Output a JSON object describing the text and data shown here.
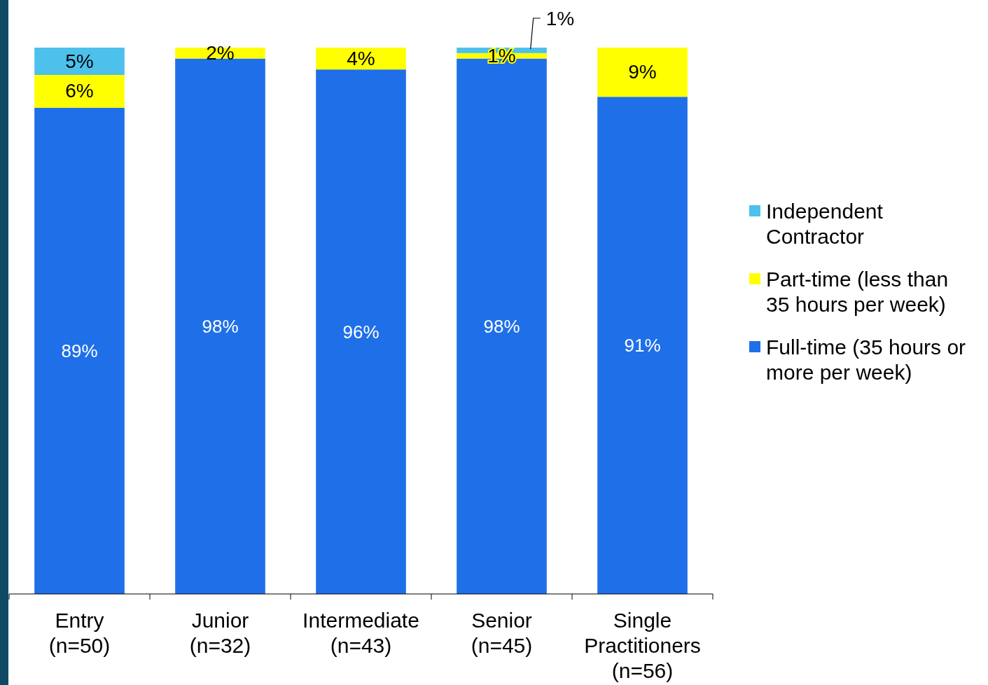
{
  "chart_data": {
    "type": "bar",
    "stacked": true,
    "ylim": [
      0,
      100
    ],
    "legend": "right",
    "categories": [
      "Entry\n(n=50)",
      "Junior\n(n=32)",
      "Intermediate\n(n=43)",
      "Senior\n(n=45)",
      "Single\nPractitioners\n(n=56)"
    ],
    "series": [
      {
        "name": "Full-time (35 hours or\nmore per week)",
        "color": "#1f6fe8",
        "values": [
          89,
          98,
          96,
          98,
          91
        ],
        "value_labels": [
          "89%",
          "98%",
          "96%",
          "98%",
          "91%"
        ]
      },
      {
        "name": "Part-time (less than\n35 hours per week)",
        "color": "#ffff00",
        "values": [
          6,
          2,
          4,
          1,
          9
        ],
        "value_labels": [
          "6%",
          "2%",
          "4%",
          "1%",
          "9%"
        ]
      },
      {
        "name": "Independent\nContractor",
        "color": "#4dc0ec",
        "values": [
          5,
          0,
          0,
          1,
          0
        ],
        "value_labels": [
          "5%",
          null,
          null,
          "1%",
          null
        ]
      }
    ]
  }
}
